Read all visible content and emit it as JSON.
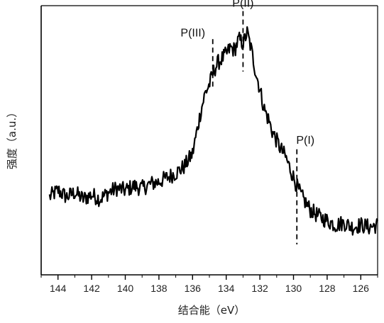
{
  "chart_data": {
    "type": "line",
    "xlabel": "结合能（eV）",
    "ylabel": "强度（a.u.）",
    "xlim": [
      145,
      125
    ],
    "x_ticks": [
      144,
      142,
      140,
      138,
      136,
      134,
      132,
      130,
      128,
      126
    ],
    "y_ticks_shown": false,
    "grid": false,
    "series": [
      {
        "x": [
          144.5,
          144.0,
          143.5,
          143.0,
          142.5,
          142.0,
          141.5,
          141.0,
          140.5,
          140.0,
          139.5,
          139.0,
          138.5,
          138.0,
          137.5,
          137.0,
          136.5,
          136.0,
          135.75,
          135.5,
          135.25,
          135.0,
          134.75,
          134.5,
          134.25,
          134.0,
          133.75,
          133.5,
          133.25,
          133.0,
          132.75,
          132.5,
          132.25,
          132.0,
          131.75,
          131.5,
          131.25,
          131.0,
          130.75,
          130.5,
          130.25,
          130.0,
          129.75,
          129.5,
          129.25,
          129.0,
          128.5,
          128.0,
          127.5,
          127.0,
          126.5,
          126.0,
          125.5,
          125.0
        ],
        "y": [
          0.22,
          0.25,
          0.22,
          0.24,
          0.21,
          0.23,
          0.21,
          0.24,
          0.26,
          0.25,
          0.27,
          0.26,
          0.28,
          0.29,
          0.31,
          0.33,
          0.36,
          0.42,
          0.52,
          0.62,
          0.7,
          0.74,
          0.8,
          0.84,
          0.86,
          0.88,
          0.91,
          0.9,
          0.95,
          0.93,
          0.98,
          0.9,
          0.8,
          0.72,
          0.63,
          0.58,
          0.52,
          0.48,
          0.44,
          0.41,
          0.36,
          0.31,
          0.26,
          0.22,
          0.19,
          0.16,
          0.13,
          0.11,
          0.09,
          0.1,
          0.08,
          0.09,
          0.08,
          0.09
        ]
      }
    ],
    "annotations": [
      {
        "label": "P(III)",
        "x": 134.8,
        "line_y": [
          0.72,
          0.95
        ]
      },
      {
        "label": "P(II)",
        "x": 133.0,
        "line_y": [
          0.8,
          1.08
        ]
      },
      {
        "label": "P(I)",
        "x": 129.8,
        "line_y": [
          0.0,
          0.44
        ]
      }
    ]
  }
}
